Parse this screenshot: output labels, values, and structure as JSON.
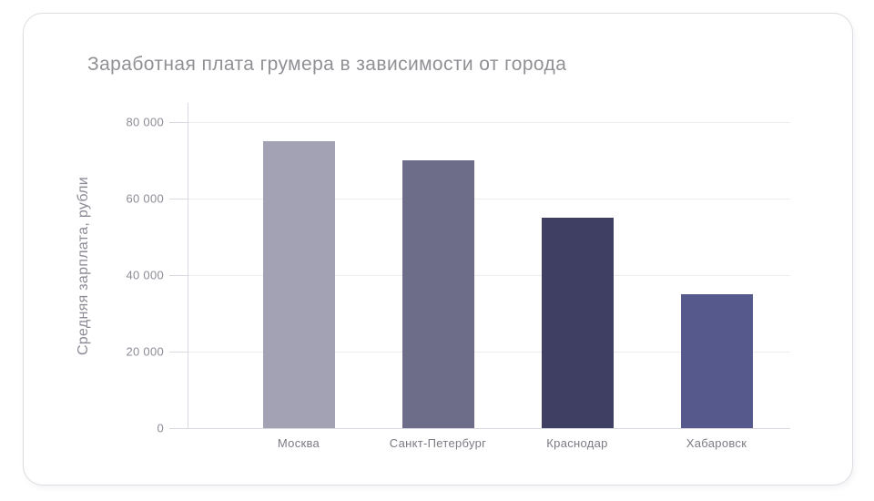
{
  "card": {
    "title": "Заработная плата грумера в зависимости от города"
  },
  "chart_data": {
    "type": "bar",
    "title": "Заработная плата грумера в зависимости от города",
    "categories": [
      "Москва",
      "Санкт-Петербург",
      "Краснодар",
      "Хабаровск"
    ],
    "values": [
      75000,
      70000,
      55000,
      35000
    ],
    "bar_colors": [
      "#a3a2b5",
      "#6e6d89",
      "#3e3f63",
      "#55598c"
    ],
    "xlabel": "",
    "ylabel": "Средняя зарплата, рубли",
    "ylim": [
      0,
      85000
    ],
    "yticks": [
      0,
      20000,
      40000,
      60000,
      80000
    ],
    "ytick_labels": [
      "0",
      "20 000",
      "40 000",
      "60 000",
      "80 000"
    ],
    "grid": "horizontal",
    "legend": "none"
  },
  "colors": {
    "grid": "#ececf2",
    "axis": "#d9d9e1",
    "tick_text": "#8c8c96",
    "category_text": "#7b7b84",
    "title_text": "#909095",
    "card_border": "#dcdce2",
    "card_bg": "#ffffff",
    "page_bg": "#ffffff"
  }
}
